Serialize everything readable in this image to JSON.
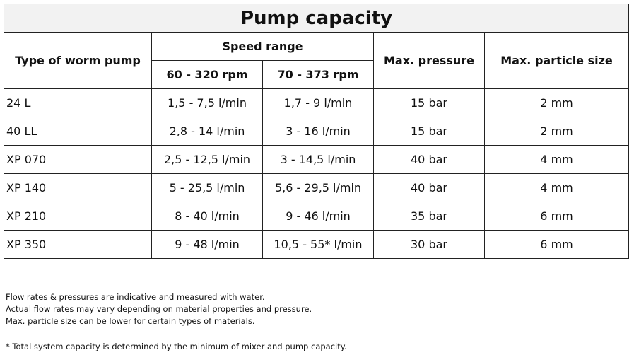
{
  "table": {
    "title": "Pump capacity",
    "headers": {
      "type": "Type of worm pump",
      "speed_range": "Speed range",
      "speed_a": "60 - 320 rpm",
      "speed_b": "70 - 373 rpm",
      "max_pressure": "Max. pressure",
      "max_particle": "Max. particle size"
    },
    "rows": [
      {
        "type": "24 L",
        "speed_a": "1,5 - 7,5 l/min",
        "speed_b": "1,7 - 9 l/min",
        "pressure": "15 bar",
        "particle": "2 mm"
      },
      {
        "type": "40 LL",
        "speed_a": "2,8 - 14 l/min",
        "speed_b": "3 - 16 l/min",
        "pressure": "15 bar",
        "particle": "2 mm"
      },
      {
        "type": "XP 070",
        "speed_a": "2,5 - 12,5 l/min",
        "speed_b": "3 - 14,5 l/min",
        "pressure": "40 bar",
        "particle": "4 mm"
      },
      {
        "type": "XP 140",
        "speed_a": "5 - 25,5 l/min",
        "speed_b": "5,6 - 29,5 l/min",
        "pressure": "40 bar",
        "particle": "4 mm"
      },
      {
        "type": "XP 210",
        "speed_a": "8 - 40 l/min",
        "speed_b": "9 - 46 l/min",
        "pressure": "35 bar",
        "particle": "6 mm"
      },
      {
        "type": "XP 350",
        "speed_a": "9 - 48 l/min",
        "speed_b": "10,5 - 55* l/min",
        "pressure": "30 bar",
        "particle": "6 mm"
      }
    ]
  },
  "notes": [
    "Flow rates & pressures are indicative and measured with water.",
    "Actual flow rates may vary depending on material properties and pressure.",
    "Max. particle size can be lower for certain types of materials."
  ],
  "footnote": "* Total system capacity is determined by the minimum of mixer and pump capacity."
}
